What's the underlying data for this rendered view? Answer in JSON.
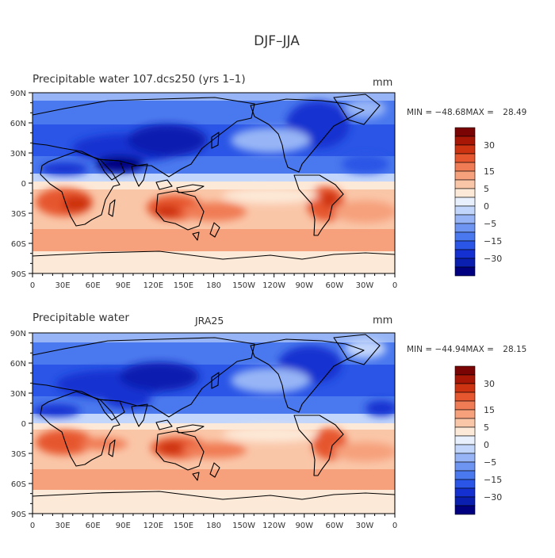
{
  "page_title": "DJF–JJA",
  "colorbar": {
    "colors": [
      "#000080",
      "#0a1fb0",
      "#1530d0",
      "#2a55e6",
      "#4a78ee",
      "#6f95f2",
      "#97b5f6",
      "#c2d6fb",
      "#e8f0fd",
      "#fde9d8",
      "#fac6a8",
      "#f6a07c",
      "#f07c55",
      "#e6562f",
      "#cd3311",
      "#a81605",
      "#7a0303"
    ],
    "tick_labels": [
      "30",
      "15",
      "5",
      "0",
      "−5",
      "−15",
      "−30"
    ]
  },
  "axis_labels": {
    "y": [
      "90N",
      "60N",
      "30N",
      "0",
      "30S",
      "60S",
      "90S"
    ],
    "x": [
      "0",
      "30E",
      "60E",
      "90E",
      "120E",
      "150E",
      "180",
      "150W",
      "120W",
      "90W",
      "60W",
      "30W",
      "0"
    ]
  },
  "panels": [
    {
      "title_left": "Precipitable water 107.dcs250 (yrs 1–1)",
      "title_center": "",
      "units": "mm",
      "min_label": "MIN = ",
      "min_value": "−48.68",
      "max_label": "MAX = ",
      "max_value": "28.49"
    },
    {
      "title_left": "Precipitable water",
      "title_center": "JRA25",
      "units": "mm",
      "min_label": "MIN = ",
      "min_value": "−44.94",
      "max_label": "MAX = ",
      "max_value": "28.15"
    }
  ],
  "chart_data": [
    {
      "type": "heatmap",
      "title": "Precipitable water 107.dcs250 (yrs 1–1)",
      "units": "mm",
      "x_range": [
        0,
        360
      ],
      "y_range": [
        -90,
        90
      ],
      "min": -48.68,
      "max": 28.49,
      "contour_levels": [
        -35,
        -30,
        -25,
        -20,
        -15,
        -10,
        -5,
        -2,
        0,
        2,
        5,
        10,
        15,
        20,
        25,
        30
      ]
    },
    {
      "type": "heatmap",
      "title": "Precipitable water",
      "subtitle": "JRA25",
      "units": "mm",
      "x_range": [
        0,
        360
      ],
      "y_range": [
        -90,
        90
      ],
      "min": -44.94,
      "max": 28.15,
      "contour_levels": [
        -35,
        -30,
        -25,
        -20,
        -15,
        -10,
        -5,
        -2,
        0,
        2,
        5,
        10,
        15,
        20,
        25,
        30
      ]
    }
  ]
}
